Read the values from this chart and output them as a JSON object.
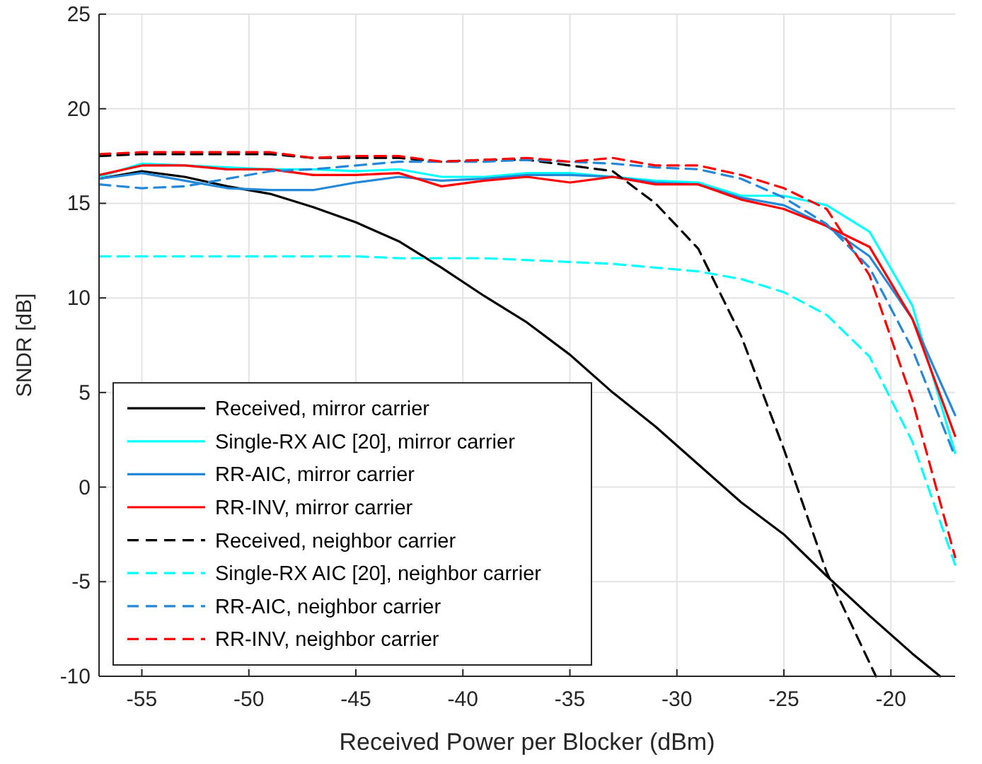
{
  "chart_data": {
    "type": "line",
    "xlabel": "Received Power per Blocker (dBm)",
    "ylabel": "SNDR [dB]",
    "xlim": [
      -57,
      -17
    ],
    "ylim": [
      -10,
      25
    ],
    "xticks": [
      -55,
      -50,
      -45,
      -40,
      -35,
      -30,
      -25,
      -20
    ],
    "yticks": [
      -10,
      -5,
      0,
      5,
      10,
      15,
      20,
      25
    ],
    "grid": true,
    "legend": "bottom left",
    "marker": "none",
    "x": [
      -57,
      -55,
      -53,
      -51,
      -49,
      -47,
      -45,
      -43,
      -41,
      -39,
      -37,
      -35,
      -33,
      -31,
      -29,
      -27,
      -25,
      -23,
      -21,
      -19,
      -17
    ],
    "series": [
      {
        "name": "Received, mirror carrier",
        "color": "#000000",
        "line_style": "solid",
        "x": [
          -57,
          -55,
          -53,
          -51,
          -49,
          -47,
          -45,
          -43,
          -41,
          -39,
          -37,
          -35,
          -33,
          -31,
          -29,
          -27,
          -25,
          -23,
          -21,
          -19,
          -17.7
        ],
        "values": [
          16.3,
          16.7,
          16.4,
          15.9,
          15.5,
          14.8,
          14.0,
          13.0,
          11.6,
          10.1,
          8.7,
          7.0,
          5.0,
          3.2,
          1.2,
          -0.8,
          -2.5,
          -4.7,
          -6.8,
          -8.8,
          -10
        ]
      },
      {
        "name": "Single-RX AIC [20], mirror carrier",
        "color": "#00ffff",
        "line_style": "solid",
        "values": [
          16.4,
          17.1,
          17.0,
          16.9,
          16.8,
          16.8,
          16.7,
          16.8,
          16.4,
          16.4,
          16.6,
          16.6,
          16.4,
          16.2,
          16.1,
          15.4,
          15.4,
          14.9,
          13.5,
          9.6,
          1.8
        ]
      },
      {
        "name": "RR-AIC, mirror carrier",
        "color": "#2488d8",
        "line_style": "solid",
        "values": [
          16.3,
          16.6,
          16.2,
          15.8,
          15.7,
          15.7,
          16.1,
          16.4,
          16.2,
          16.3,
          16.5,
          16.5,
          16.4,
          16.1,
          16.0,
          15.3,
          14.9,
          13.8,
          12.2,
          8.9,
          3.8
        ]
      },
      {
        "name": "RR-INV, mirror carrier",
        "color": "#ff0000",
        "line_style": "solid",
        "values": [
          16.5,
          17.0,
          17.0,
          16.8,
          16.8,
          16.5,
          16.5,
          16.6,
          15.9,
          16.2,
          16.4,
          16.1,
          16.4,
          16.0,
          16.0,
          15.2,
          14.7,
          13.8,
          12.7,
          8.9,
          2.7
        ]
      },
      {
        "name": "Received, neighbor carrier",
        "color": "#000000",
        "line_style": "dashed",
        "x": [
          -57,
          -55,
          -53,
          -51,
          -49,
          -47,
          -45,
          -43,
          -41,
          -39,
          -37,
          -35,
          -33,
          -31,
          -29,
          -27,
          -25,
          -23,
          -20.7
        ],
        "values": [
          17.5,
          17.6,
          17.6,
          17.6,
          17.6,
          17.4,
          17.4,
          17.4,
          17.2,
          17.3,
          17.3,
          17.0,
          16.7,
          15.0,
          12.6,
          8.0,
          2.0,
          -4.5,
          -10
        ]
      },
      {
        "name": "Single-RX AIC [20], neighbor carrier",
        "color": "#00ffff",
        "line_style": "dashed",
        "values": [
          12.2,
          12.2,
          12.2,
          12.2,
          12.2,
          12.2,
          12.2,
          12.1,
          12.1,
          12.1,
          12.0,
          11.9,
          11.8,
          11.6,
          11.4,
          11.0,
          10.3,
          9.1,
          6.9,
          2.4,
          -4.1
        ]
      },
      {
        "name": "RR-AIC, neighbor carrier",
        "color": "#2488d8",
        "line_style": "dashed",
        "values": [
          16.0,
          15.8,
          15.9,
          16.3,
          16.7,
          16.8,
          17.0,
          17.2,
          17.2,
          17.2,
          17.3,
          17.2,
          17.1,
          16.9,
          16.8,
          16.3,
          15.3,
          13.9,
          11.6,
          7.3,
          1.6
        ]
      },
      {
        "name": "RR-INV, neighbor carrier",
        "color": "#ff0000",
        "line_style": "dashed",
        "values": [
          17.6,
          17.7,
          17.7,
          17.7,
          17.7,
          17.4,
          17.5,
          17.5,
          17.2,
          17.3,
          17.4,
          17.2,
          17.4,
          17.0,
          17.0,
          16.5,
          15.8,
          14.7,
          11.2,
          4.6,
          -3.7
        ]
      }
    ]
  }
}
